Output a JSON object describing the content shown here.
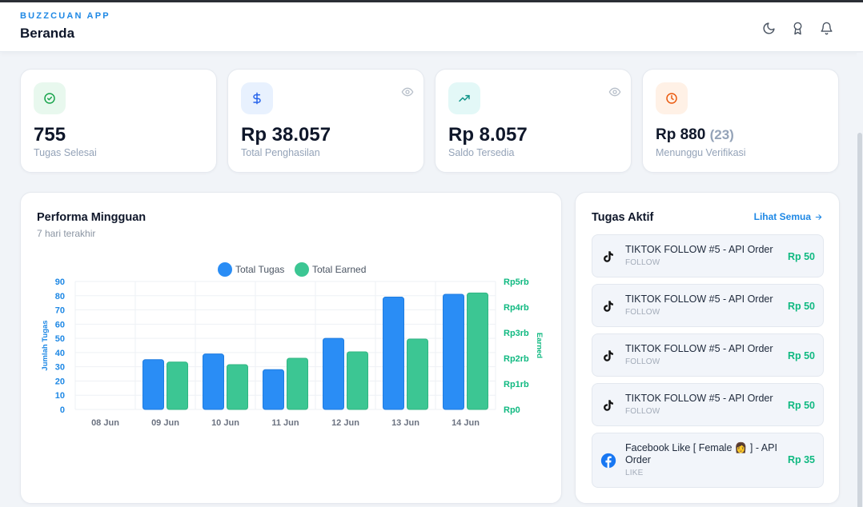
{
  "app": {
    "brand": "BUZZCUAN APP",
    "page_title": "Beranda"
  },
  "header_icons": [
    "moon-icon",
    "award-icon",
    "bell-icon"
  ],
  "stats": [
    {
      "value": "755",
      "label": "Tugas Selesai",
      "icon": "check-circle-icon",
      "accent": "#16a34a"
    },
    {
      "value": "Rp 38.057",
      "label": "Total Penghasilan",
      "icon": "dollar-icon",
      "accent": "#2563eb"
    },
    {
      "value": "Rp 8.057",
      "label": "Saldo Tersedia",
      "icon": "trending-up-icon",
      "accent": "#0d9488"
    },
    {
      "value": "Rp 880",
      "count": "(23)",
      "label": "Menunggu Verifikasi",
      "icon": "clock-icon",
      "accent": "#ea580c"
    }
  ],
  "chart": {
    "title": "Performa Mingguan",
    "subtitle": "7 hari terakhir"
  },
  "chart_data": {
    "type": "bar",
    "categories": [
      "08 Jun",
      "09 Jun",
      "10 Jun",
      "11 Jun",
      "12 Jun",
      "13 Jun",
      "14 Jun"
    ],
    "series": [
      {
        "name": "Total Tugas",
        "axis": "left",
        "color": "#2a8df5",
        "values": [
          0,
          35,
          39,
          28,
          50,
          79,
          81
        ]
      },
      {
        "name": "Total Earned",
        "axis": "right",
        "color": "#3cc693",
        "values": [
          0,
          1850,
          1750,
          2000,
          2250,
          2750,
          4550
        ]
      }
    ],
    "ylabel": "Jumlah Tugas",
    "y2label": "Earned",
    "ylim": [
      0,
      90
    ],
    "y2lim": [
      0,
      5000
    ],
    "yticks": [
      "0",
      "10",
      "20",
      "30",
      "40",
      "50",
      "60",
      "70",
      "80",
      "90"
    ],
    "y2ticks": [
      "Rp0",
      "Rp1rb",
      "Rp2rb",
      "Rp3rb",
      "Rp4rb",
      "Rp5rb"
    ],
    "legend": "top",
    "grid": true
  },
  "tasks": {
    "title": "Tugas Aktif",
    "see_all": "Lihat Semua",
    "items": [
      {
        "name": "TIKTOK FOLLOW #5 - API Order",
        "type": "FOLLOW",
        "amount": "Rp 50",
        "icon": "tiktok-icon"
      },
      {
        "name": "TIKTOK FOLLOW #5 - API Order",
        "type": "FOLLOW",
        "amount": "Rp 50",
        "icon": "tiktok-icon"
      },
      {
        "name": "TIKTOK FOLLOW #5 - API Order",
        "type": "FOLLOW",
        "amount": "Rp 50",
        "icon": "tiktok-icon"
      },
      {
        "name": "TIKTOK FOLLOW #5 - API Order",
        "type": "FOLLOW",
        "amount": "Rp 50",
        "icon": "tiktok-icon"
      },
      {
        "name": "Facebook Like [ Female 👩 ] - API Order",
        "type": "LIKE",
        "amount": "Rp 35",
        "icon": "facebook-icon"
      }
    ]
  }
}
